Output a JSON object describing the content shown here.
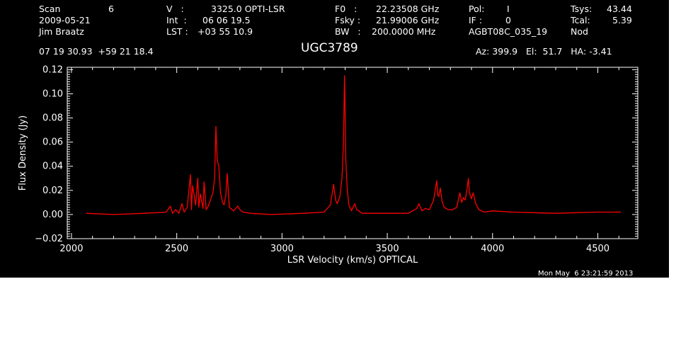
{
  "header": {
    "scan_label": "Scan",
    "scan_value": "6",
    "date": "2009-05-21",
    "observer": "Jim Braatz",
    "v_label": "V   :",
    "v_value": "3325.0 OPTI-LSR",
    "int_label": "Int  :",
    "int_value": "06 06 19.5",
    "lst_label": "LST :",
    "lst_value": "+03 55 10.9",
    "f0_label": "F0   :",
    "f0_value": "22.23508 GHz",
    "fsky_label": "Fsky :",
    "fsky_value": "21.99006 GHz",
    "bw_label": "BW   :",
    "bw_value": "200.0000 MHz",
    "pol_label": "Pol:",
    "pol_value": "I",
    "if_label": "IF :",
    "if_value": "0",
    "project": "AGBT08C_035_19",
    "tsys_label": "Tsys:",
    "tsys_value": "43.44",
    "tcal_label": "Tcal:",
    "tcal_value": "5.39",
    "mode": "Nod",
    "coords": "07 19 30.93  +59 21 18.4",
    "source": "UGC3789",
    "az_el_ha": "Az: 399.9   El:  51.7   HA: -3.41"
  },
  "footer": {
    "timestamp": "Mon May  6 23:21:59 2013"
  },
  "colors": {
    "background": "#000000",
    "axes": "#ffffff",
    "spectrum": "#ff0000"
  },
  "chart_data": {
    "type": "line",
    "title": "UGC3789",
    "xlabel": "LSR Velocity (km/s) OPTICAL",
    "ylabel": "Flux Density (Jy)",
    "xlim": [
      1980,
      4690
    ],
    "ylim": [
      -0.02,
      0.122
    ],
    "x_ticks": [
      2000,
      2500,
      3000,
      3500,
      4000,
      4500
    ],
    "y_ticks": [
      -0.02,
      0.0,
      0.02,
      0.04,
      0.06,
      0.08,
      0.1,
      0.12
    ],
    "x_tick_labels": [
      "2000",
      "2500",
      "3000",
      "3500",
      "4000",
      "4500"
    ],
    "y_tick_labels": [
      "−0.02",
      "0.00",
      "0.02",
      "0.04",
      "0.06",
      "0.08",
      "0.10",
      "0.12"
    ],
    "grid": false,
    "series": [
      {
        "color": "#ff0000",
        "x": [
          2070,
          2200,
          2350,
          2450,
          2470,
          2480,
          2495,
          2510,
          2525,
          2535,
          2550,
          2565,
          2570,
          2575,
          2590,
          2600,
          2605,
          2612,
          2625,
          2630,
          2640,
          2650,
          2660,
          2672,
          2680,
          2686,
          2692,
          2700,
          2708,
          2718,
          2725,
          2733,
          2740,
          2750,
          2770,
          2790,
          2800,
          2815,
          2850,
          2950,
          3100,
          3200,
          3230,
          3245,
          3255,
          3262,
          3275,
          3285,
          3292,
          3297,
          3303,
          3310,
          3318,
          3330,
          3345,
          3355,
          3365,
          3380,
          3450,
          3600,
          3640,
          3650,
          3665,
          3680,
          3700,
          3720,
          3735,
          3740,
          3745,
          3752,
          3760,
          3770,
          3790,
          3810,
          3830,
          3845,
          3853,
          3862,
          3870,
          3880,
          3885,
          3890,
          3900,
          3908,
          3920,
          3935,
          3960,
          4000,
          4100,
          4300,
          4500,
          4610
        ],
        "y": [
          0.001,
          0.0,
          0.001,
          0.002,
          0.007,
          0.001,
          0.004,
          0.001,
          0.009,
          0.002,
          0.006,
          0.033,
          0.004,
          0.024,
          0.008,
          0.03,
          0.006,
          0.017,
          0.005,
          0.027,
          0.004,
          0.007,
          0.012,
          0.018,
          0.03,
          0.073,
          0.045,
          0.04,
          0.018,
          0.01,
          0.008,
          0.016,
          0.034,
          0.006,
          0.003,
          0.007,
          0.004,
          0.002,
          0.001,
          0.0,
          0.001,
          0.002,
          0.008,
          0.025,
          0.012,
          0.009,
          0.015,
          0.03,
          0.06,
          0.115,
          0.045,
          0.02,
          0.008,
          0.003,
          0.009,
          0.004,
          0.003,
          0.001,
          0.001,
          0.001,
          0.005,
          0.009,
          0.003,
          0.005,
          0.004,
          0.012,
          0.028,
          0.016,
          0.015,
          0.022,
          0.011,
          0.006,
          0.004,
          0.004,
          0.006,
          0.018,
          0.01,
          0.014,
          0.012,
          0.022,
          0.03,
          0.018,
          0.013,
          0.018,
          0.009,
          0.004,
          0.002,
          0.003,
          0.002,
          0.001,
          0.002,
          0.002
        ]
      }
    ]
  }
}
